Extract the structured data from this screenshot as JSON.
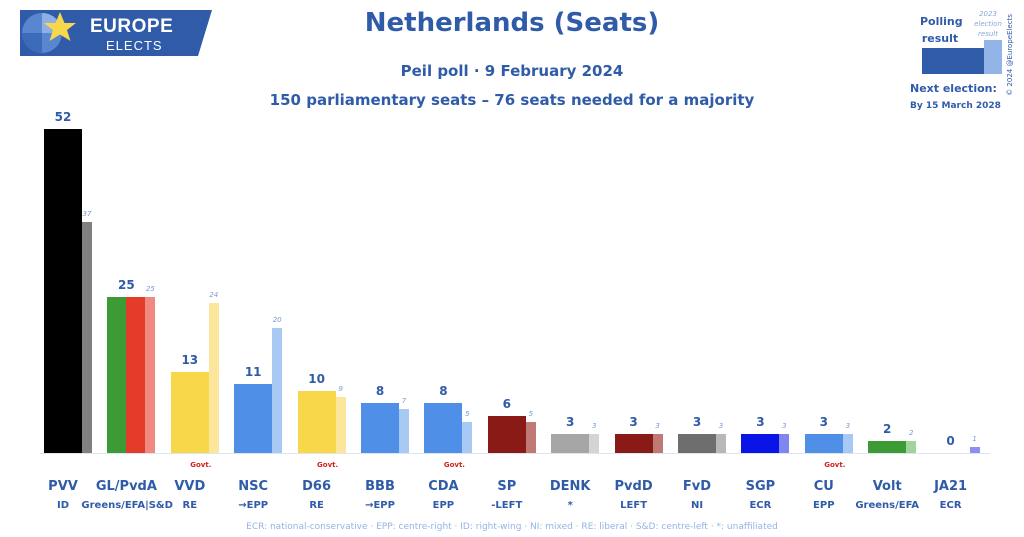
{
  "brand": {
    "line1": "EUROPE",
    "line2": "ELECTS"
  },
  "header": {
    "title": "Netherlands (Seats)",
    "subtitle": "Peil poll · 9 February 2024",
    "subtitle2": "150 parliamentary seats – 76 seats needed for a majority"
  },
  "legend": {
    "polling": "Polling result",
    "election": "2023 election result",
    "next_label": "Next election:",
    "next_date": "By 15 March 2028"
  },
  "copyright": "© 2024 @EuropeElects",
  "footnote": "ECR: national-conservative · EPP: centre-right · ID: right-wing · NI: mixed · RE: liberal · S&D: centre-left · *: unaffiliated",
  "chart_data": {
    "type": "bar",
    "title": "Netherlands (Seats)",
    "ylim": [
      0,
      52
    ],
    "series": [
      {
        "name": "Polling result"
      },
      {
        "name": "2023 election result"
      }
    ],
    "parties": [
      {
        "name": "PVV",
        "group": "ID",
        "poll": 52,
        "election": 37,
        "govt": false,
        "colors": [
          "#000000"
        ],
        "elec_color": "#808080"
      },
      {
        "name": "GL/PvdA",
        "group": "Greens/EFA|S&D",
        "poll": 25,
        "election": 25,
        "govt": false,
        "colors": [
          "#3c9b35",
          "#e43c2a"
        ],
        "elec_color": "#f08a80"
      },
      {
        "name": "VVD",
        "group": "RE",
        "poll": 13,
        "election": 24,
        "govt": true,
        "colors": [
          "#f8d84a"
        ],
        "elec_color": "#fbe69b"
      },
      {
        "name": "NSC",
        "group": "→EPP",
        "poll": 11,
        "election": 20,
        "govt": false,
        "colors": [
          "#4f8fe8"
        ],
        "elec_color": "#a9c9f5"
      },
      {
        "name": "D66",
        "group": "RE",
        "poll": 10,
        "election": 9,
        "govt": true,
        "colors": [
          "#f8d84a"
        ],
        "elec_color": "#fbe69b"
      },
      {
        "name": "BBB",
        "group": "→EPP",
        "poll": 8,
        "election": 7,
        "govt": false,
        "colors": [
          "#4f8fe8"
        ],
        "elec_color": "#a9c9f5"
      },
      {
        "name": "CDA",
        "group": "EPP",
        "poll": 8,
        "election": 5,
        "govt": true,
        "colors": [
          "#4f8fe8"
        ],
        "elec_color": "#a9c9f5"
      },
      {
        "name": "SP",
        "group": "-LEFT",
        "poll": 6,
        "election": 5,
        "govt": false,
        "colors": [
          "#8a1a16"
        ],
        "elec_color": "#c07a76"
      },
      {
        "name": "DENK",
        "group": "*",
        "poll": 3,
        "election": 3,
        "govt": false,
        "colors": [
          "#a6a6a6"
        ],
        "elec_color": "#d4d4d4"
      },
      {
        "name": "PvdD",
        "group": "LEFT",
        "poll": 3,
        "election": 3,
        "govt": false,
        "colors": [
          "#8a1a16"
        ],
        "elec_color": "#c07a76"
      },
      {
        "name": "FvD",
        "group": "NI",
        "poll": 3,
        "election": 3,
        "govt": false,
        "colors": [
          "#6e6e6e"
        ],
        "elec_color": "#b8b8b8"
      },
      {
        "name": "SGP",
        "group": "ECR",
        "poll": 3,
        "election": 3,
        "govt": false,
        "colors": [
          "#0a14e6"
        ],
        "elec_color": "#7f86f0"
      },
      {
        "name": "CU",
        "group": "EPP",
        "poll": 3,
        "election": 3,
        "govt": true,
        "colors": [
          "#4f8fe8"
        ],
        "elec_color": "#a9c9f5"
      },
      {
        "name": "Volt",
        "group": "Greens/EFA",
        "poll": 2,
        "election": 2,
        "govt": false,
        "colors": [
          "#3c9b35"
        ],
        "elec_color": "#9fd49a"
      },
      {
        "name": "JA21",
        "group": "ECR",
        "poll": 0,
        "election": 1,
        "govt": false,
        "colors": [
          "#0a14e6"
        ],
        "elec_color": "#8a8ff0"
      }
    ],
    "govt_label": "Govt."
  }
}
